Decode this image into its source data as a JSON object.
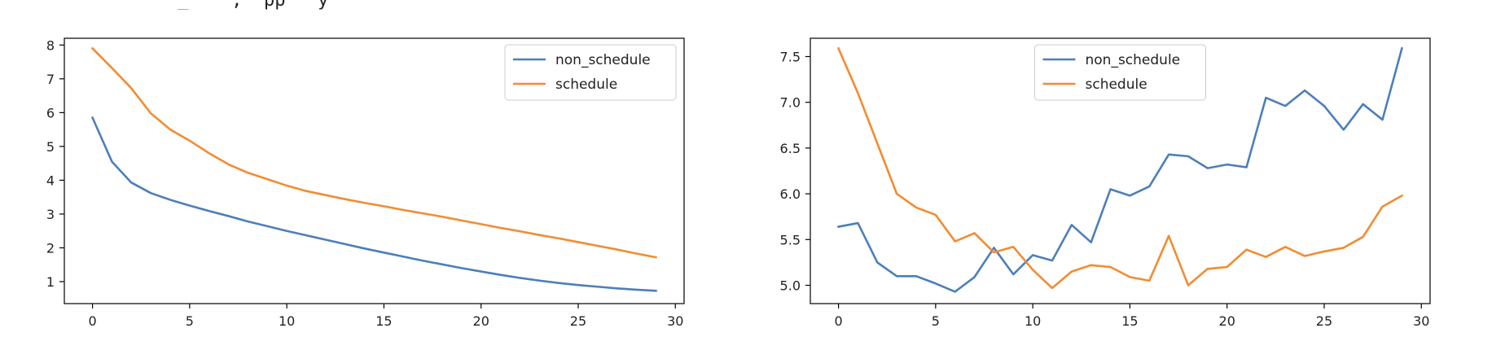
{
  "header_fragment": "_    ,  pp   y",
  "colors": {
    "non_schedule": "#4c7fba",
    "schedule": "#f28c32"
  },
  "chart_data": [
    {
      "type": "line",
      "title": "",
      "xlabel": "",
      "ylabel": "",
      "xlim": [
        -1.45,
        30.45
      ],
      "ylim": [
        0.35,
        8.2
      ],
      "xticks": [
        0,
        5,
        10,
        15,
        20,
        25,
        30
      ],
      "yticks": [
        1,
        2,
        3,
        4,
        5,
        6,
        7,
        8
      ],
      "yticklabels": [
        "1",
        "2",
        "3",
        "4",
        "5",
        "6",
        "7",
        "8"
      ],
      "legend": "top-right",
      "grid": false,
      "x": [
        0,
        1,
        2,
        3,
        4,
        5,
        6,
        7,
        8,
        9,
        10,
        11,
        12,
        13,
        14,
        15,
        16,
        17,
        18,
        19,
        20,
        21,
        22,
        23,
        24,
        25,
        26,
        27,
        28,
        29
      ],
      "series": [
        {
          "name": "non_schedule",
          "values": [
            5.85,
            4.55,
            3.93,
            3.62,
            3.42,
            3.25,
            3.09,
            2.94,
            2.78,
            2.64,
            2.5,
            2.37,
            2.24,
            2.11,
            1.98,
            1.86,
            1.74,
            1.62,
            1.51,
            1.4,
            1.3,
            1.2,
            1.11,
            1.03,
            0.96,
            0.9,
            0.85,
            0.8,
            0.76,
            0.73
          ]
        },
        {
          "name": "schedule",
          "values": [
            7.9,
            7.32,
            6.72,
            5.98,
            5.5,
            5.17,
            4.8,
            4.47,
            4.22,
            4.03,
            3.84,
            3.68,
            3.56,
            3.44,
            3.33,
            3.23,
            3.12,
            3.02,
            2.92,
            2.81,
            2.7,
            2.59,
            2.49,
            2.38,
            2.28,
            2.17,
            2.06,
            1.95,
            1.83,
            1.72
          ]
        }
      ]
    },
    {
      "type": "line",
      "title": "",
      "xlabel": "",
      "ylabel": "",
      "xlim": [
        -1.45,
        30.45
      ],
      "ylim": [
        4.8,
        7.7
      ],
      "xticks": [
        0,
        5,
        10,
        15,
        20,
        25,
        30
      ],
      "yticks": [
        5.0,
        5.5,
        6.0,
        6.5,
        7.0,
        7.5
      ],
      "yticklabels": [
        "5.0",
        "5.5",
        "6.0",
        "6.5",
        "7.0",
        "7.5"
      ],
      "legend": "top-center",
      "grid": false,
      "x": [
        0,
        1,
        2,
        3,
        4,
        5,
        6,
        7,
        8,
        9,
        10,
        11,
        12,
        13,
        14,
        15,
        16,
        17,
        18,
        19,
        20,
        21,
        22,
        23,
        24,
        25,
        26,
        27,
        28,
        29
      ],
      "series": [
        {
          "name": "non_schedule",
          "values": [
            5.64,
            5.68,
            5.25,
            5.1,
            5.1,
            5.02,
            4.93,
            5.09,
            5.41,
            5.12,
            5.33,
            5.27,
            5.66,
            5.47,
            6.05,
            5.98,
            6.08,
            6.43,
            6.41,
            6.28,
            6.32,
            6.29,
            7.05,
            6.96,
            7.13,
            6.96,
            6.7,
            6.98,
            6.81,
            7.59
          ]
        },
        {
          "name": "schedule",
          "values": [
            7.59,
            7.1,
            6.55,
            6.0,
            5.85,
            5.77,
            5.48,
            5.57,
            5.36,
            5.42,
            5.17,
            4.97,
            5.15,
            5.22,
            5.2,
            5.09,
            5.05,
            5.54,
            5.0,
            5.18,
            5.2,
            5.39,
            5.31,
            5.42,
            5.32,
            5.37,
            5.41,
            5.53,
            5.86,
            5.98
          ]
        }
      ]
    }
  ]
}
